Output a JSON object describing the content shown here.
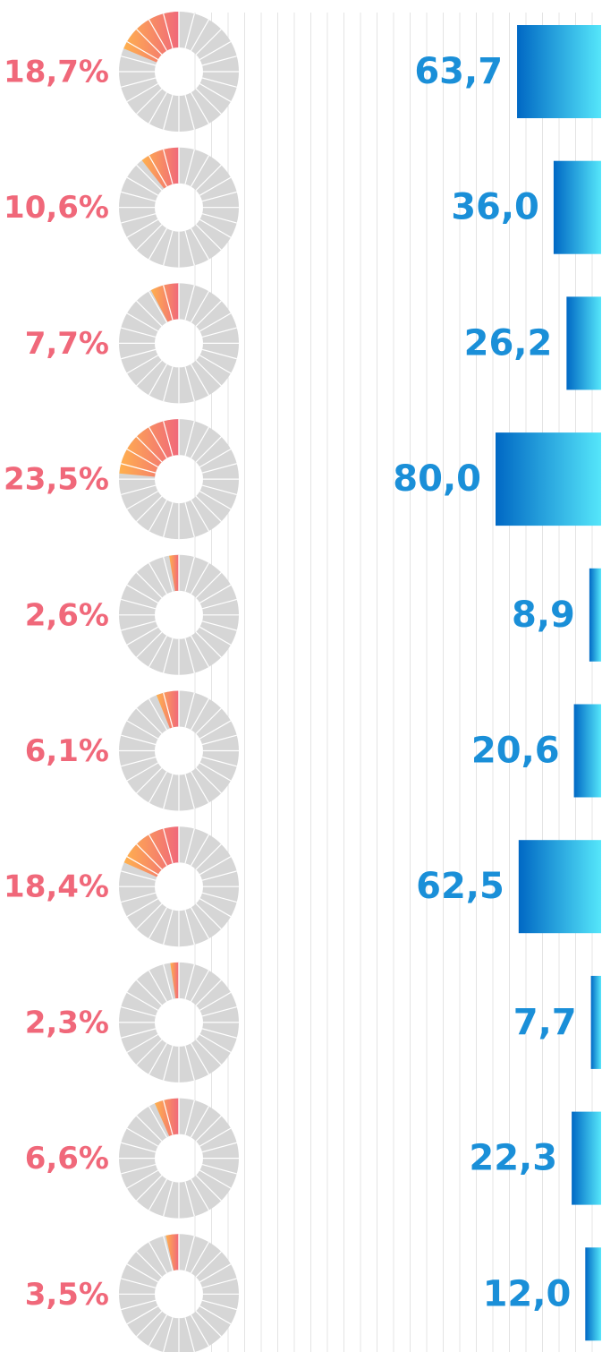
{
  "chart_data": {
    "type": "bar",
    "xlim": [
      0,
      100
    ],
    "series": [
      {
        "type": "donut",
        "color": "#f0687a",
        "track_color": "#d6d6d6",
        "values": [
          18.7,
          10.6,
          7.7,
          23.5,
          2.6,
          6.1,
          18.4,
          2.3,
          6.6,
          3.5
        ],
        "value_labels": [
          "18,7%",
          "10,6%",
          "7,7%",
          "23,5%",
          "2,6%",
          "6,1%",
          "18,4%",
          "2,3%",
          "6,6%",
          "3,5%"
        ]
      },
      {
        "type": "bar",
        "color": "#1a8fd8",
        "values": [
          63.7,
          36.0,
          26.2,
          80.0,
          8.9,
          20.6,
          62.5,
          7.7,
          22.3,
          12.0
        ],
        "value_labels": [
          "63,7",
          "36,0",
          "26,2",
          "80,0",
          "8,9",
          "20,6",
          "62,5",
          "7,7",
          "22,3",
          "12,0"
        ]
      }
    ]
  }
}
